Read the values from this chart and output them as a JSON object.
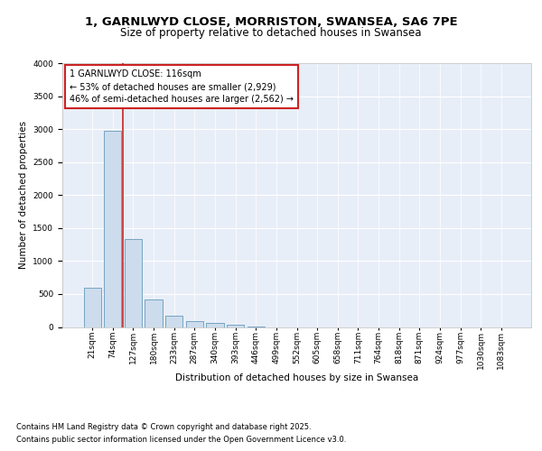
{
  "title_line1": "1, GARNLWYD CLOSE, MORRISTON, SWANSEA, SA6 7PE",
  "title_line2": "Size of property relative to detached houses in Swansea",
  "xlabel": "Distribution of detached houses by size in Swansea",
  "ylabel": "Number of detached properties",
  "categories": [
    "21sqm",
    "74sqm",
    "127sqm",
    "180sqm",
    "233sqm",
    "287sqm",
    "340sqm",
    "393sqm",
    "446sqm",
    "499sqm",
    "552sqm",
    "605sqm",
    "658sqm",
    "711sqm",
    "764sqm",
    "818sqm",
    "871sqm",
    "924sqm",
    "977sqm",
    "1030sqm",
    "1083sqm"
  ],
  "values": [
    600,
    2970,
    1330,
    420,
    175,
    90,
    55,
    35,
    5,
    0,
    0,
    0,
    0,
    0,
    0,
    0,
    0,
    0,
    0,
    0,
    0
  ],
  "bar_color": "#ccdcec",
  "bar_edge_color": "#6699bb",
  "vline_color": "#cc2222",
  "annotation_text": "1 GARNLWYD CLOSE: 116sqm\n← 53% of detached houses are smaller (2,929)\n46% of semi-detached houses are larger (2,562) →",
  "annotation_box_color": "#ffffff",
  "annotation_box_edge": "#cc2222",
  "ylim": [
    0,
    4000
  ],
  "yticks": [
    0,
    500,
    1000,
    1500,
    2000,
    2500,
    3000,
    3500,
    4000
  ],
  "bg_color": "#e8eef8",
  "grid_color": "#ffffff",
  "footer_line1": "Contains HM Land Registry data © Crown copyright and database right 2025.",
  "footer_line2": "Contains public sector information licensed under the Open Government Licence v3.0.",
  "title_fontsize": 9.5,
  "subtitle_fontsize": 8.5,
  "axis_label_fontsize": 7.5,
  "tick_fontsize": 6.5,
  "annotation_fontsize": 7,
  "footer_fontsize": 6
}
